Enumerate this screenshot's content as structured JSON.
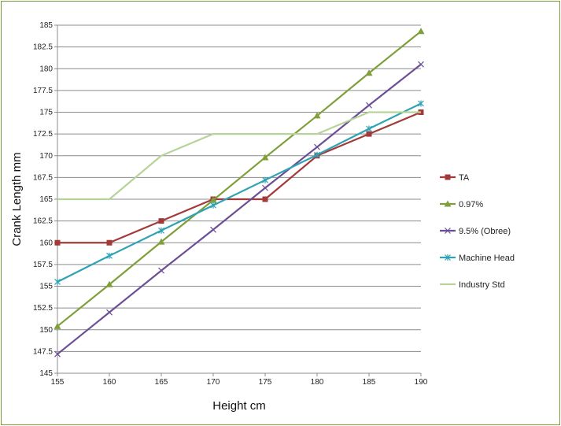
{
  "chart_data": {
    "type": "line",
    "title": "",
    "xlabel": "Height cm",
    "ylabel": "Crank Length mm",
    "x": [
      155,
      160,
      165,
      170,
      175,
      180,
      185,
      190
    ],
    "x_tick_labels": [
      "155",
      "160",
      "165",
      "170",
      "175",
      "180",
      "185",
      "190"
    ],
    "ylim": [
      145,
      185
    ],
    "y_tick_labels": [
      "145",
      "147.5",
      "150",
      "152.5",
      "155",
      "157.5",
      "160",
      "162.5",
      "165",
      "167.5",
      "170",
      "172.5",
      "175",
      "177.5",
      "180",
      "182.5",
      "185"
    ],
    "grid": "horizontal",
    "legend_position": "right",
    "series": [
      {
        "name": "TA",
        "color": "#a33a3a",
        "marker": "square",
        "values": [
          160,
          160,
          162.5,
          165,
          165,
          170,
          172.5,
          175
        ]
      },
      {
        "name": "0.97%",
        "color": "#7f9f3a",
        "marker": "triangle",
        "values": [
          150.4,
          155.2,
          160.1,
          164.9,
          169.8,
          174.6,
          179.5,
          184.3
        ]
      },
      {
        "name": "9.5% (Obree)",
        "color": "#6b4f96",
        "marker": "x",
        "values": [
          147.2,
          152,
          156.8,
          161.5,
          166.3,
          171,
          175.8,
          180.5
        ]
      },
      {
        "name": "Machine Head",
        "color": "#2fa3b5",
        "marker": "star",
        "values": [
          155.5,
          158.5,
          161.4,
          164.3,
          167.2,
          170.1,
          173.1,
          176
        ]
      },
      {
        "name": "Industry Std",
        "color": "#b7d39a",
        "marker": "none",
        "values": [
          165,
          165,
          170,
          172.5,
          172.5,
          172.5,
          175,
          175
        ]
      }
    ]
  }
}
